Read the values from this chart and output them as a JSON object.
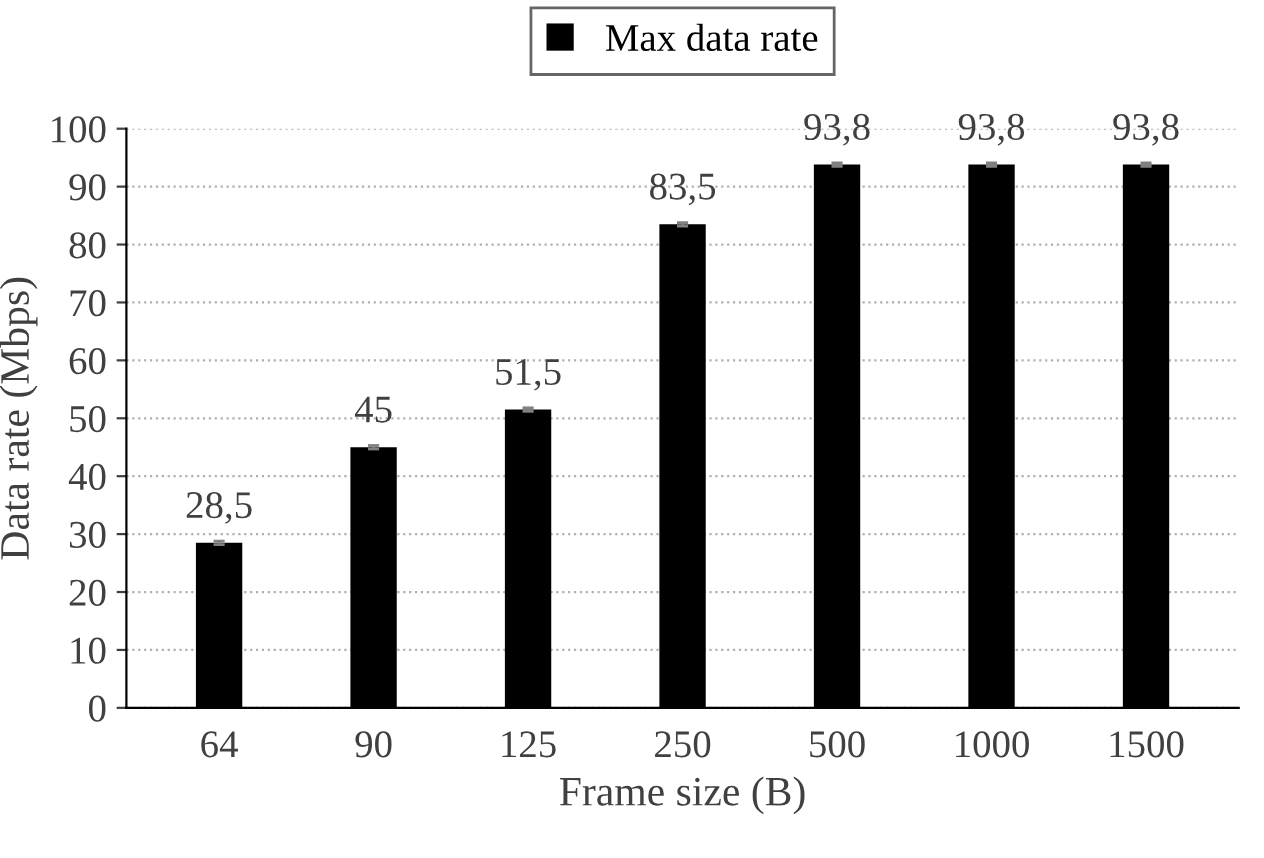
{
  "chart_data": {
    "type": "bar",
    "xlabel": "Frame size (B)",
    "ylabel": "Data rate (Mbps)",
    "categories": [
      "64",
      "90",
      "125",
      "250",
      "500",
      "1000",
      "1500"
    ],
    "series": [
      {
        "name": "Max data rate",
        "color": "#000000",
        "values": [
          28.5,
          45,
          51.5,
          83.5,
          93.8,
          93.8,
          93.8
        ],
        "errors": [
          0.3,
          0.3,
          0.3,
          0.3,
          0.3,
          0.3,
          0.3
        ],
        "value_labels": [
          "28,5",
          "45",
          "51,5",
          "83,5",
          "93,8",
          "93,8",
          "93,8"
        ]
      }
    ],
    "ylim": [
      0,
      100
    ],
    "yticks": [
      0,
      10,
      20,
      30,
      40,
      50,
      60,
      70,
      80,
      90,
      100
    ],
    "grid": "y",
    "legend": "top"
  }
}
